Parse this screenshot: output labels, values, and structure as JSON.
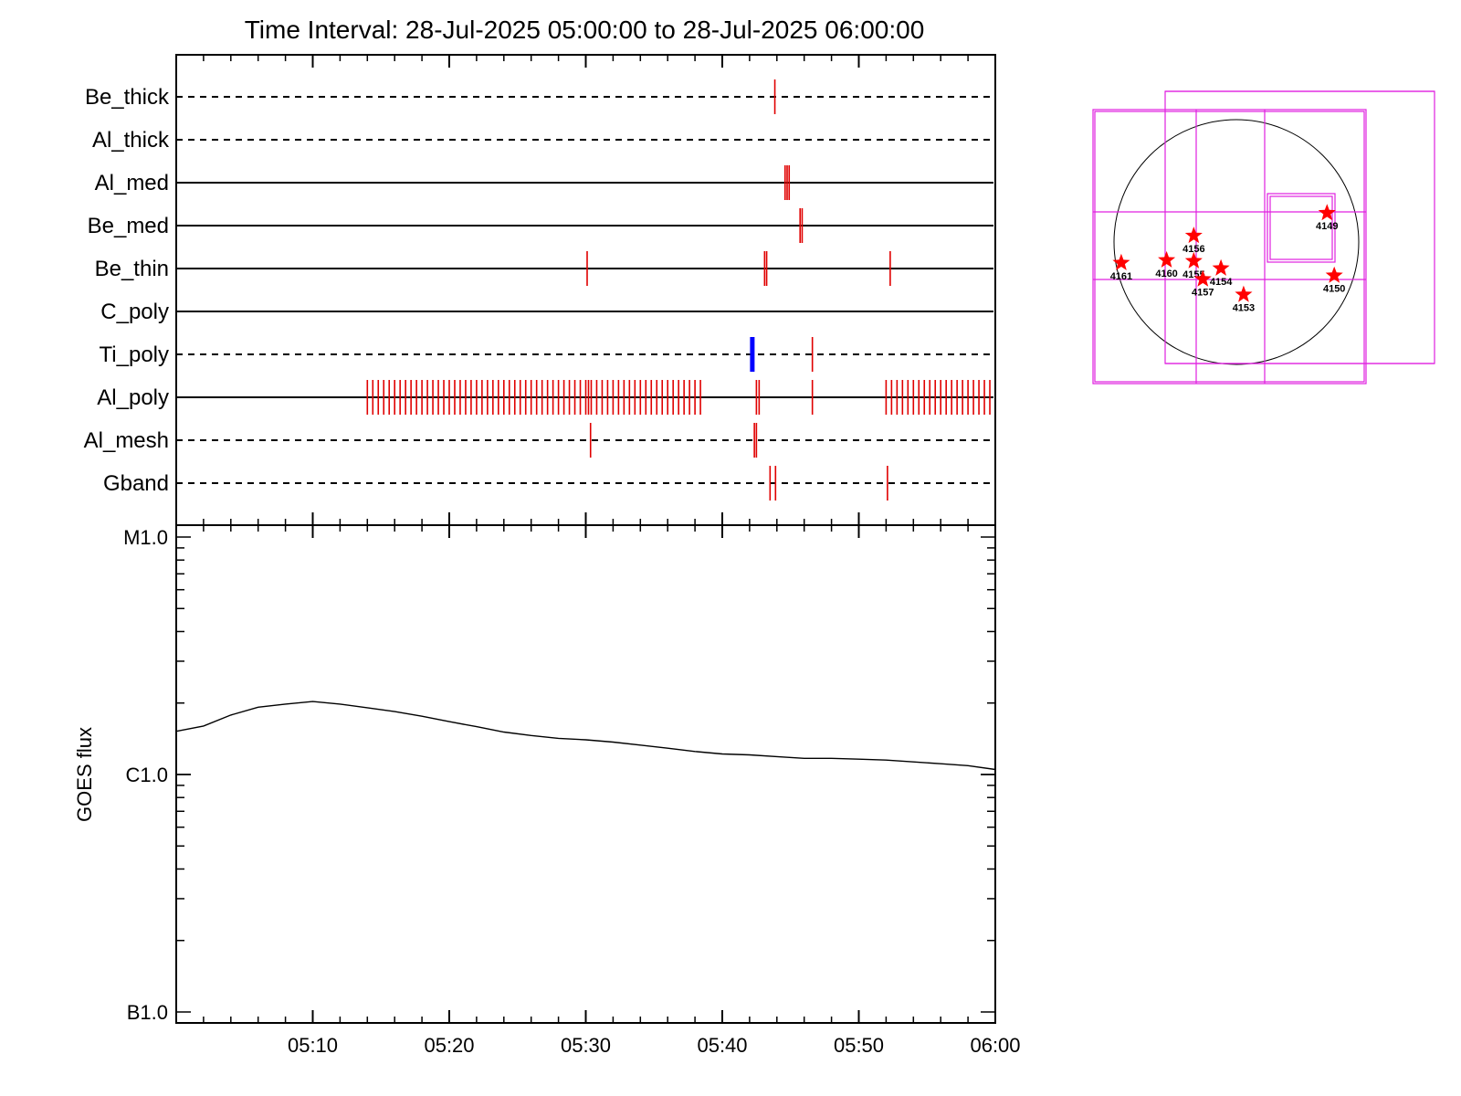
{
  "title": "Time Interval: 28-Jul-2025 05:00:00 to 28-Jul-2025 06:00:00",
  "chart_data": [
    {
      "type": "event-timeline",
      "x_unit": "minutes after 05:00",
      "xlim": [
        0,
        60
      ],
      "rows": [
        {
          "name": "Be_thick",
          "line_style": "dashed",
          "events": [
            {
              "color": "#e00000",
              "times": [
                43.85
              ]
            }
          ]
        },
        {
          "name": "Al_thick",
          "line_style": "dashed",
          "events": []
        },
        {
          "name": "Al_med",
          "line_style": "solid",
          "events": [
            {
              "color": "#e00000",
              "times": [
                44.6,
                44.75,
                44.9
              ]
            }
          ]
        },
        {
          "name": "Be_med",
          "line_style": "solid",
          "events": [
            {
              "color": "#e00000",
              "times": [
                45.7,
                45.85
              ]
            }
          ]
        },
        {
          "name": "Be_thin",
          "line_style": "solid",
          "events": [
            {
              "color": "#e00000",
              "times": [
                30.1,
                43.1,
                43.25,
                52.3
              ]
            }
          ]
        },
        {
          "name": "C_poly",
          "line_style": "solid",
          "events": []
        },
        {
          "name": "Ti_poly",
          "line_style": "dashed",
          "events": [
            {
              "color": "#0000ff",
              "times": [
                42.2
              ],
              "bold": true
            },
            {
              "color": "#e00000",
              "times": [
                46.6
              ]
            }
          ]
        },
        {
          "name": "Al_poly",
          "line_style": "solid",
          "events": [
            {
              "color": "#e00000",
              "times": [
                14.0,
                14.4,
                14.8,
                15.2,
                15.6,
                16.0,
                16.4,
                16.8,
                17.2,
                17.6,
                18.0,
                18.4,
                18.8,
                19.2,
                19.6,
                20.0,
                20.4,
                20.8,
                21.2,
                21.6,
                22.0,
                22.4,
                22.8,
                23.2,
                23.6,
                24.0,
                24.4,
                24.8,
                25.2,
                25.6,
                26.0,
                26.4,
                26.8,
                27.2,
                27.6,
                28.0,
                28.4,
                28.8,
                29.2,
                29.6,
                30.0,
                30.2,
                30.4,
                30.8,
                31.2,
                31.6,
                32.0,
                32.4,
                32.8,
                33.2,
                33.6,
                34.0,
                34.4,
                34.8,
                35.2,
                35.6,
                36.0,
                36.4,
                36.8,
                37.2,
                37.6,
                38.0,
                38.4,
                42.5,
                42.7,
                46.6,
                52.0,
                52.4,
                52.8,
                53.2,
                53.6,
                54.0,
                54.4,
                54.8,
                55.2,
                55.6,
                56.0,
                56.4,
                56.8,
                57.2,
                57.6,
                58.0,
                58.4,
                58.8,
                59.2,
                59.6
              ]
            }
          ]
        },
        {
          "name": "Al_mesh",
          "line_style": "dashed",
          "events": [
            {
              "color": "#e00000",
              "times": [
                30.35,
                42.35,
                42.5
              ]
            }
          ]
        },
        {
          "name": "Gband",
          "line_style": "dashed",
          "events": [
            {
              "color": "#e00000",
              "times": [
                43.5,
                43.9,
                52.1
              ]
            }
          ]
        }
      ]
    },
    {
      "type": "line",
      "ylabel": "GOES flux",
      "y_scale": "log",
      "ylim": [
        1e-07,
        1e-05
      ],
      "yticks": [
        {
          "value": 1e-05,
          "label": "M1.0"
        },
        {
          "value": 1e-06,
          "label": "C1.0"
        },
        {
          "value": 1e-07,
          "label": "B1.0"
        }
      ],
      "xlim": [
        0,
        60
      ],
      "xticks": [
        {
          "value": 10,
          "label": "05:10"
        },
        {
          "value": 20,
          "label": "05:20"
        },
        {
          "value": 30,
          "label": "05:30"
        },
        {
          "value": 40,
          "label": "05:40"
        },
        {
          "value": 50,
          "label": "05:50"
        },
        {
          "value": 60,
          "label": "06:00"
        }
      ],
      "series": [
        {
          "color": "#000000",
          "x": [
            0,
            2,
            4,
            6,
            8,
            10,
            12,
            14,
            16,
            18,
            20,
            22,
            24,
            26,
            28,
            30,
            32,
            34,
            36,
            38,
            40,
            42,
            44,
            46,
            48,
            50,
            52,
            54,
            56,
            58,
            60
          ],
          "y": [
            1.52e-06,
            1.6e-06,
            1.78e-06,
            1.92e-06,
            1.98e-06,
            2.03e-06,
            1.98e-06,
            1.91e-06,
            1.84e-06,
            1.76e-06,
            1.67e-06,
            1.59e-06,
            1.51e-06,
            1.46e-06,
            1.42e-06,
            1.4e-06,
            1.37e-06,
            1.33e-06,
            1.29e-06,
            1.25e-06,
            1.22e-06,
            1.21e-06,
            1.19e-06,
            1.17e-06,
            1.17e-06,
            1.16e-06,
            1.15e-06,
            1.13e-06,
            1.11e-06,
            1.09e-06,
            1.05e-06
          ]
        }
      ]
    },
    {
      "type": "scatter",
      "description_source": "solar disk map with active regions",
      "points": [
        {
          "label": "4149",
          "x": 1.0,
          "y": 0.32
        },
        {
          "label": "4156",
          "x": -0.47,
          "y": 0.07
        },
        {
          "label": "4161",
          "x": -1.27,
          "y": -0.23
        },
        {
          "label": "4160",
          "x": -0.77,
          "y": -0.2
        },
        {
          "label": "4155",
          "x": -0.47,
          "y": -0.21
        },
        {
          "label": "4154",
          "x": -0.17,
          "y": -0.29
        },
        {
          "label": "4157",
          "x": -0.37,
          "y": -0.41
        },
        {
          "label": "4150",
          "x": 1.08,
          "y": -0.37
        },
        {
          "label": "4153",
          "x": 0.08,
          "y": -0.58
        }
      ]
    }
  ],
  "colors": {
    "event_red": "#e00000",
    "event_blue": "#0000ff",
    "fov_magenta": "#e020e0",
    "marker_red": "#ff0000"
  }
}
